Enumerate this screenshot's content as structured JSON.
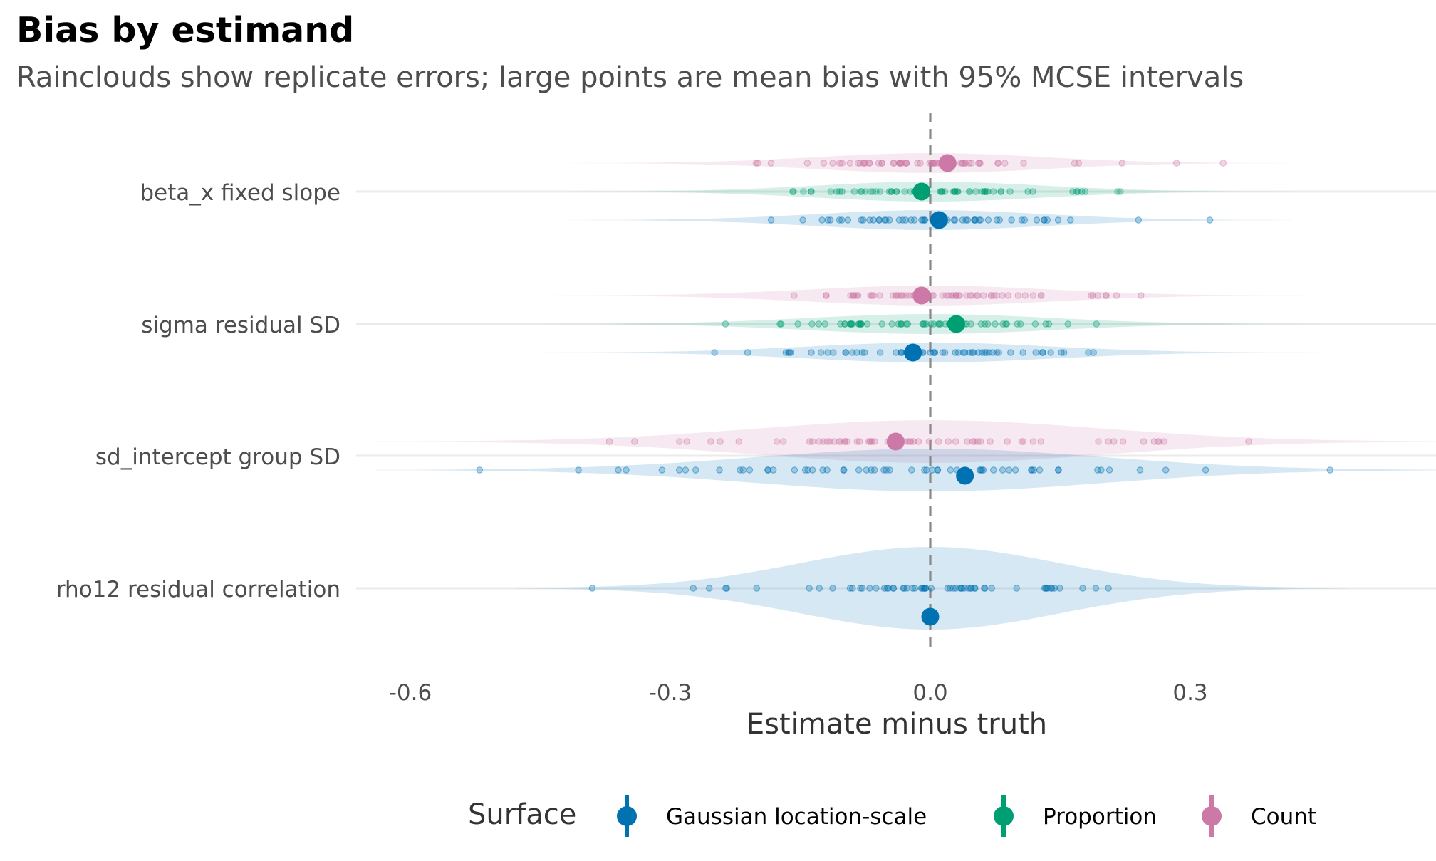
{
  "title": "Bias by estimand",
  "subtitle": "Rainclouds show replicate errors; large points are mean bias with 95% MCSE intervals",
  "chart_data": {
    "type": "scatter",
    "xlabel": "Estimate minus truth",
    "xlim": [
      -0.6,
      0.6
    ],
    "x_ticks": [
      {
        "value": -0.6,
        "label": "-0.6"
      },
      {
        "value": -0.3,
        "label": "-0.3"
      },
      {
        "value": 0.0,
        "label": "0.0"
      },
      {
        "value": 0.3,
        "label": "0.3"
      }
    ],
    "reference_line": 0,
    "categories": [
      "beta_x fixed slope",
      "sigma residual SD",
      "sd_intercept group SD",
      "rho12 residual correlation"
    ],
    "legend": {
      "title": "Surface",
      "position": "bottom",
      "entries": [
        {
          "name": "Gaussian location-scale",
          "color": "#0072B2"
        },
        {
          "name": "Proportion",
          "color": "#009E73"
        },
        {
          "name": "Count",
          "color": "#CC79A7"
        }
      ]
    },
    "series": [
      {
        "name": "Gaussian location-scale",
        "color": "#0072B2",
        "mean_bias": [
          0.01,
          -0.02,
          0.04,
          0.0
        ]
      },
      {
        "name": "Proportion",
        "color": "#009E73",
        "mean_bias": [
          -0.01,
          0.03,
          null,
          null
        ]
      },
      {
        "name": "Count",
        "color": "#CC79A7",
        "mean_bias": [
          0.02,
          -0.01,
          -0.04,
          null
        ]
      }
    ],
    "grid": true
  }
}
